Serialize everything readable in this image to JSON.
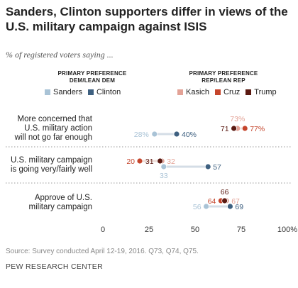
{
  "title": "Sanders, Clinton supporters differ in views of the U.S. military campaign against ISIS",
  "subtitle": "% of registered voters saying ...",
  "groups": {
    "dem_header": [
      "PRIMARY PREFERENCE",
      "DEM/LEAN DEM"
    ],
    "rep_header": [
      "PRIMARY PREFERENCE",
      "REP/LEAN REP"
    ]
  },
  "legend": {
    "sanders": "Sanders",
    "clinton": "Clinton",
    "kasich": "Kasich",
    "cruz": "Cruz",
    "trump": "Trump"
  },
  "colors": {
    "sanders": "#a9c3d6",
    "clinton": "#3e6080",
    "kasich": "#e3a296",
    "cruz": "#c5452c",
    "trump": "#5b1a12"
  },
  "chart_data": {
    "type": "scatter",
    "categories": [
      "More concerned that U.S. military action will not go far enough",
      "U.S. military campaign is going very/fairly well",
      "Approve of U.S. military campaign"
    ],
    "category_lines": [
      [
        "More concerned that",
        "U.S. military action",
        "will not go far enough"
      ],
      [
        "U.S. military campaign",
        "is going very/fairly well"
      ],
      [
        "Approve of U.S.",
        "military campaign"
      ]
    ],
    "series": [
      {
        "name": "Sanders",
        "key": "sanders",
        "values": [
          28,
          33,
          56
        ]
      },
      {
        "name": "Clinton",
        "key": "clinton",
        "values": [
          40,
          57,
          69
        ]
      },
      {
        "name": "Kasich",
        "key": "kasich",
        "values": [
          73,
          32,
          67
        ]
      },
      {
        "name": "Cruz",
        "key": "cruz",
        "values": [
          77,
          20,
          64
        ]
      },
      {
        "name": "Trump",
        "key": "trump",
        "values": [
          71,
          31,
          66
        ]
      }
    ],
    "x_ticks": [
      "0",
      "25",
      "50",
      "75",
      "100%"
    ],
    "xlim": [
      0,
      100
    ],
    "grid": false,
    "legend_position": "top"
  },
  "source": "Source: Survey conducted April 12-19, 2016. Q73, Q74, Q75.",
  "brand": "PEW RESEARCH CENTER"
}
